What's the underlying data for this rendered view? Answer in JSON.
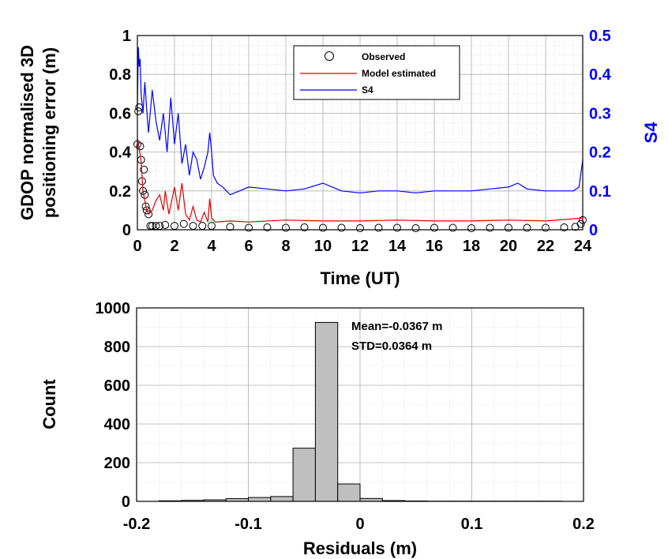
{
  "chart_data": [
    {
      "type": "line",
      "xlabel": "Time (UT)",
      "ylabel": [
        "GDOP normalised 3D",
        "positioning error (m)"
      ],
      "y2label": "S4",
      "xlim": [
        0,
        24
      ],
      "ylim": [
        0,
        1
      ],
      "y2lim": [
        0,
        0.5
      ],
      "xticks": [
        "0",
        "2",
        "4",
        "6",
        "8",
        "10",
        "12",
        "14",
        "16",
        "18",
        "20",
        "22",
        "24"
      ],
      "yticks": [
        "0",
        "0.2",
        "0.4",
        "0.6",
        "0.8",
        "1"
      ],
      "y2ticks": [
        "0",
        "0.1",
        "0.2",
        "0.3",
        "0.4",
        "0.5"
      ],
      "grid": true,
      "legend_position": "top-center",
      "legend": [
        "Observed",
        "Model estimated",
        "S4"
      ],
      "colors": {
        "observed": "#000000",
        "model": "#e00000",
        "s4": "#0000ff",
        "right_axis": "#0000ff"
      },
      "series": [
        {
          "name": "Observed",
          "axis": "left",
          "style": "circles",
          "x": [
            0.0,
            0.05,
            0.1,
            0.15,
            0.2,
            0.25,
            0.3,
            0.35,
            0.4,
            0.45,
            0.5,
            0.6,
            0.7,
            0.8,
            1.0,
            1.2,
            1.5,
            2.0,
            2.5,
            3.0,
            3.5,
            4.0,
            5.0,
            6.0,
            7.0,
            8.0,
            9.0,
            10.0,
            11.0,
            12.0,
            13.0,
            14.0,
            15.0,
            16.0,
            17.0,
            18.0,
            19.0,
            20.0,
            21.0,
            22.0,
            23.0,
            23.6,
            23.9,
            24.0
          ],
          "y": [
            0.44,
            0.61,
            0.63,
            0.43,
            0.36,
            0.25,
            0.2,
            0.31,
            0.18,
            0.12,
            0.1,
            0.08,
            0.02,
            0.02,
            0.02,
            0.02,
            0.025,
            0.02,
            0.03,
            0.02,
            0.02,
            0.02,
            0.015,
            0.01,
            0.012,
            0.01,
            0.012,
            0.01,
            0.01,
            0.008,
            0.01,
            0.01,
            0.008,
            0.01,
            0.01,
            0.008,
            0.01,
            0.01,
            0.01,
            0.01,
            0.012,
            0.015,
            0.03,
            0.05
          ]
        },
        {
          "name": "Model estimated",
          "axis": "left",
          "style": "line",
          "x": [
            0.0,
            0.1,
            0.2,
            0.3,
            0.4,
            0.5,
            0.6,
            0.8,
            1.0,
            1.2,
            1.4,
            1.5,
            1.7,
            2.0,
            2.2,
            2.4,
            2.6,
            2.8,
            3.0,
            3.2,
            3.4,
            3.6,
            3.8,
            3.9,
            4.0,
            4.2,
            5,
            6,
            8,
            10,
            12,
            14,
            16,
            18,
            20,
            22,
            24
          ],
          "y": [
            0.47,
            0.42,
            0.35,
            0.2,
            0.15,
            0.1,
            0.08,
            0.1,
            0.15,
            0.18,
            0.1,
            0.2,
            0.08,
            0.22,
            0.1,
            0.24,
            0.08,
            0.05,
            0.12,
            0.05,
            0.04,
            0.09,
            0.04,
            0.16,
            0.06,
            0.04,
            0.045,
            0.04,
            0.05,
            0.045,
            0.045,
            0.05,
            0.045,
            0.045,
            0.05,
            0.045,
            0.06
          ]
        },
        {
          "name": "S4",
          "axis": "right",
          "style": "line",
          "x": [
            0.0,
            0.05,
            0.1,
            0.15,
            0.2,
            0.3,
            0.4,
            0.5,
            0.6,
            0.8,
            1.0,
            1.2,
            1.4,
            1.6,
            1.8,
            2.0,
            2.2,
            2.4,
            2.6,
            2.8,
            3.0,
            3.2,
            3.4,
            3.6,
            3.8,
            3.9,
            4.0,
            4.1,
            4.3,
            4.6,
            5.0,
            5.5,
            6.0,
            7.0,
            8.0,
            9.0,
            10.0,
            10.5,
            11.0,
            12.0,
            13.0,
            14.0,
            15.0,
            16.0,
            17.0,
            18.0,
            19.0,
            20.0,
            20.5,
            21.0,
            22.0,
            23.0,
            23.5,
            23.8,
            24.0
          ],
          "y": [
            0.32,
            0.47,
            0.42,
            0.44,
            0.35,
            0.3,
            0.38,
            0.31,
            0.25,
            0.36,
            0.28,
            0.23,
            0.3,
            0.2,
            0.34,
            0.22,
            0.3,
            0.17,
            0.22,
            0.14,
            0.2,
            0.18,
            0.13,
            0.16,
            0.2,
            0.25,
            0.2,
            0.14,
            0.12,
            0.11,
            0.09,
            0.1,
            0.11,
            0.105,
            0.1,
            0.105,
            0.12,
            0.11,
            0.1,
            0.095,
            0.1,
            0.1,
            0.095,
            0.1,
            0.1,
            0.1,
            0.105,
            0.11,
            0.12,
            0.105,
            0.1,
            0.1,
            0.1,
            0.11,
            0.18
          ]
        }
      ]
    },
    {
      "type": "bar",
      "subtype": "histogram",
      "xlabel": "Residuals (m)",
      "ylabel": "Count",
      "xlim": [
        -0.2,
        0.2
      ],
      "ylim": [
        0,
        1000
      ],
      "xticks": [
        "-0.2",
        "-0.1",
        "0",
        "0.1",
        "0.2"
      ],
      "yticks": [
        "0",
        "200",
        "400",
        "600",
        "800",
        "1000"
      ],
      "grid": true,
      "bar_color": "#bfbfbf",
      "bin_edges": [
        -0.18,
        -0.16,
        -0.14,
        -0.12,
        -0.1,
        -0.08,
        -0.06,
        -0.04,
        -0.02,
        0.0,
        0.02,
        0.04,
        0.06,
        0.08,
        0.1,
        0.12,
        0.14,
        0.16,
        0.18
      ],
      "counts": [
        3,
        5,
        8,
        14,
        20,
        25,
        275,
        925,
        90,
        15,
        4,
        2,
        1,
        1,
        1,
        1,
        1,
        1
      ],
      "annotations": [
        "Mean=-0.0367 m",
        "STD=0.0364 m"
      ]
    }
  ]
}
